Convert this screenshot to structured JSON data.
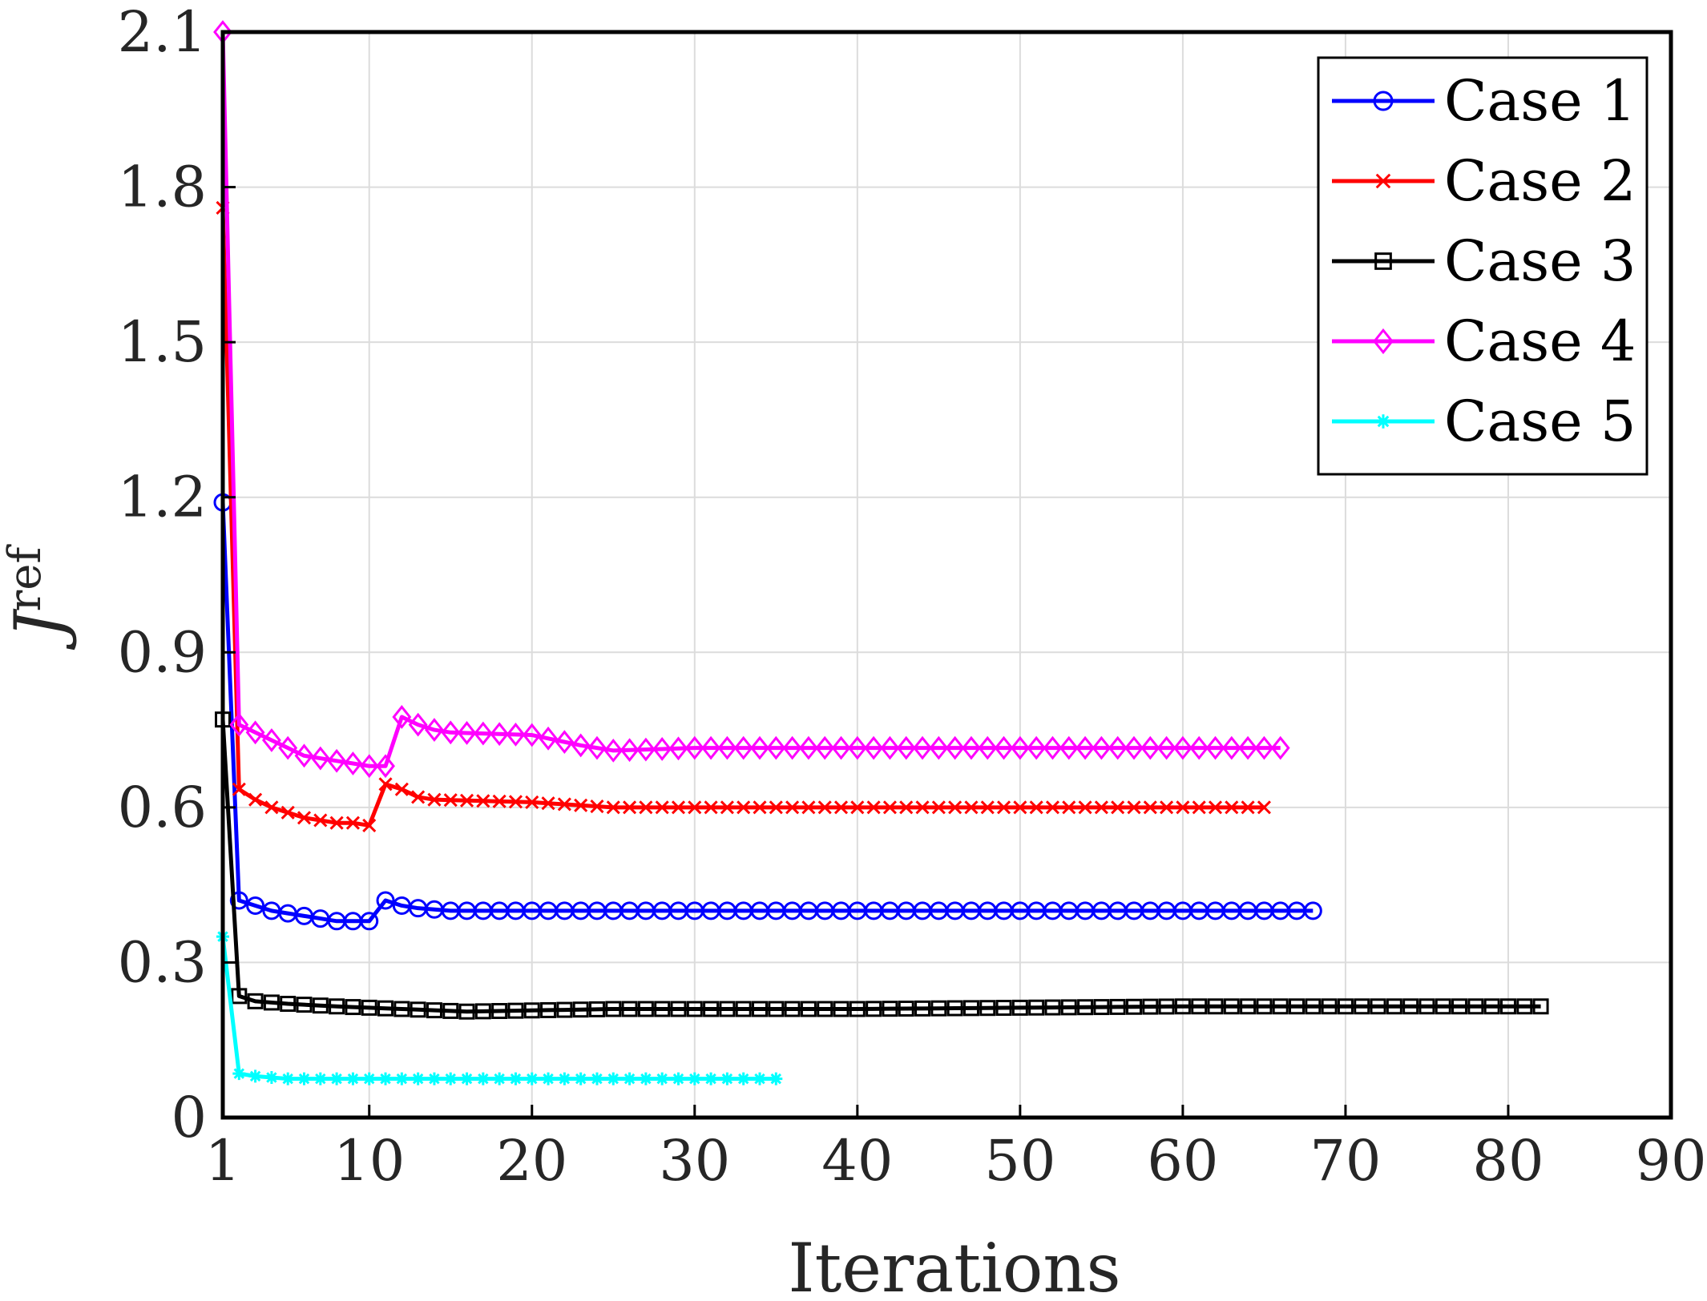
{
  "chart_data": {
    "type": "line",
    "title": "",
    "xlabel": "Iterations",
    "ylabel_main": "J",
    "ylabel_sup": "ref",
    "xlim": [
      1,
      90
    ],
    "ylim": [
      0,
      2.1
    ],
    "x_ticks": [
      1,
      10,
      20,
      30,
      40,
      50,
      60,
      70,
      80,
      90
    ],
    "y_ticks": [
      0,
      0.3,
      0.6,
      0.9,
      1.2,
      1.5,
      1.8,
      2.1
    ],
    "y_tick_labels": [
      "0",
      "0.3",
      "0.6",
      "0.9",
      "1.2",
      "1.5",
      "1.8",
      "2.1"
    ],
    "grid": true,
    "legend_position": "top-right",
    "series": [
      {
        "name": "Case 1",
        "color": "#0000ff",
        "marker": "circle",
        "last_iter": 68,
        "points": [
          [
            1,
            1.19
          ],
          [
            2,
            0.42
          ],
          [
            3,
            0.41
          ],
          [
            4,
            0.4
          ],
          [
            5,
            0.395
          ],
          [
            6,
            0.39
          ],
          [
            7,
            0.385
          ],
          [
            8,
            0.38
          ],
          [
            9,
            0.38
          ],
          [
            10,
            0.38
          ],
          [
            11,
            0.42
          ],
          [
            12,
            0.41
          ],
          [
            13,
            0.405
          ],
          [
            15,
            0.4
          ],
          [
            68,
            0.4
          ]
        ]
      },
      {
        "name": "Case 2",
        "color": "#ff0000",
        "marker": "x",
        "last_iter": 65,
        "points": [
          [
            1,
            1.76
          ],
          [
            2,
            0.635
          ],
          [
            3,
            0.615
          ],
          [
            4,
            0.6
          ],
          [
            5,
            0.59
          ],
          [
            6,
            0.58
          ],
          [
            7,
            0.575
          ],
          [
            8,
            0.57
          ],
          [
            9,
            0.57
          ],
          [
            10,
            0.565
          ],
          [
            11,
            0.645
          ],
          [
            12,
            0.635
          ],
          [
            13,
            0.62
          ],
          [
            14,
            0.615
          ],
          [
            20,
            0.61
          ],
          [
            25,
            0.6
          ],
          [
            65,
            0.6
          ]
        ]
      },
      {
        "name": "Case 3",
        "color": "#000000",
        "marker": "square",
        "last_iter": 82,
        "points": [
          [
            1,
            0.77
          ],
          [
            2,
            0.235
          ],
          [
            3,
            0.225
          ],
          [
            5,
            0.22
          ],
          [
            8,
            0.215
          ],
          [
            12,
            0.21
          ],
          [
            16,
            0.205
          ],
          [
            25,
            0.21
          ],
          [
            40,
            0.21
          ],
          [
            60,
            0.215
          ],
          [
            82,
            0.215
          ]
        ]
      },
      {
        "name": "Case 4",
        "color": "#ff00ff",
        "marker": "diamond",
        "last_iter": 66,
        "points": [
          [
            1,
            2.1
          ],
          [
            2,
            0.76
          ],
          [
            3,
            0.745
          ],
          [
            4,
            0.73
          ],
          [
            5,
            0.715
          ],
          [
            6,
            0.7
          ],
          [
            7,
            0.695
          ],
          [
            8,
            0.69
          ],
          [
            9,
            0.685
          ],
          [
            10,
            0.68
          ],
          [
            11,
            0.68
          ],
          [
            12,
            0.775
          ],
          [
            13,
            0.76
          ],
          [
            14,
            0.75
          ],
          [
            15,
            0.745
          ],
          [
            20,
            0.74
          ],
          [
            23,
            0.72
          ],
          [
            25,
            0.71
          ],
          [
            30,
            0.715
          ],
          [
            66,
            0.715
          ]
        ]
      },
      {
        "name": "Case 5",
        "color": "#00ffff",
        "marker": "asterisk",
        "last_iter": 35,
        "points": [
          [
            1,
            0.35
          ],
          [
            2,
            0.085
          ],
          [
            3,
            0.08
          ],
          [
            5,
            0.075
          ],
          [
            35,
            0.075
          ]
        ]
      }
    ]
  }
}
